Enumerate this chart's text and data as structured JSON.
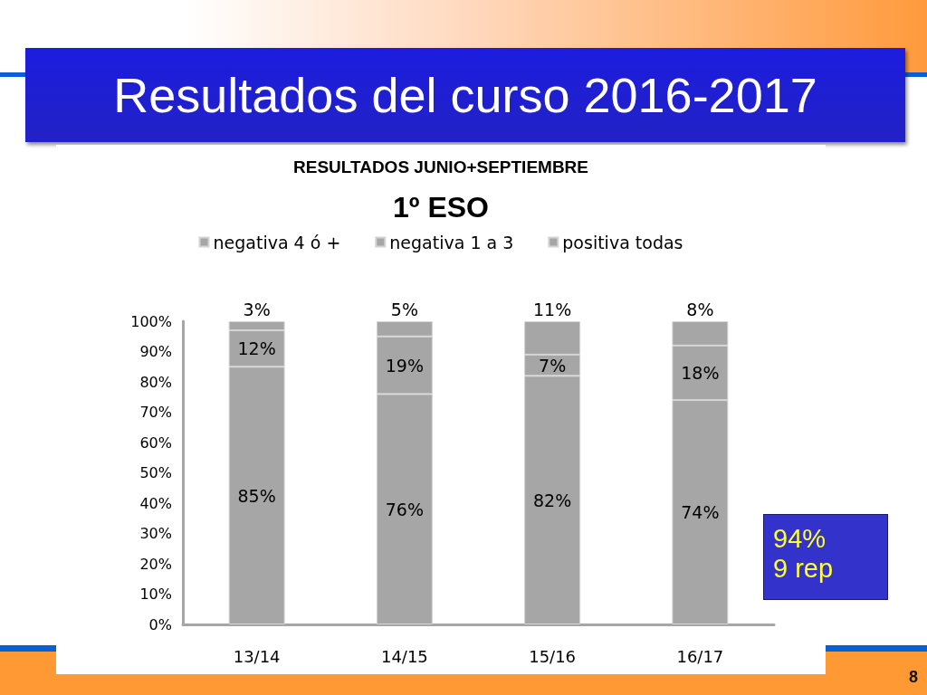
{
  "chart_data": {
    "type": "bar",
    "title": "Resultados del curso 2016-2017",
    "subtitle": "RESULTADOS JUNIO+SEPTIEMBRE",
    "annotations": [
      "1º ESO",
      "94%\n9 rep",
      "8"
    ],
    "categories": [
      "13/14",
      "14/15",
      "15/16",
      "16/17"
    ],
    "series": [
      {
        "name": "positiva todas",
        "color": "#a6a6a6",
        "values": [
          85,
          76,
          82,
          74
        ],
        "value_labels": [
          "85%",
          "76%",
          "82%",
          "74%"
        ]
      },
      {
        "name": "negativa 1 a 3",
        "color": "#a6a6a6",
        "values": [
          12,
          19,
          7,
          18
        ],
        "value_labels": [
          "12%",
          "19%",
          "7%",
          "18%"
        ]
      },
      {
        "name": "negativa 4 ó +",
        "color": "#a6a6a6",
        "values": [
          3,
          5,
          11,
          8
        ],
        "value_labels": [
          "3%",
          "5%",
          "11%",
          "8%"
        ]
      }
    ],
    "stacked": true,
    "ylim": [
      0,
      100
    ],
    "yticks": [
      {
        "value": 0,
        "label": "0%"
      },
      {
        "value": 10,
        "label": "10%"
      },
      {
        "value": 20,
        "label": "20%"
      },
      {
        "value": 30,
        "label": "30%"
      },
      {
        "value": 40,
        "label": "40%"
      },
      {
        "value": 50,
        "label": "50%"
      },
      {
        "value": 60,
        "label": "60%"
      },
      {
        "value": 70,
        "label": "70%"
      },
      {
        "value": 80,
        "label": "80%"
      },
      {
        "value": 90,
        "label": "90%"
      },
      {
        "value": 100,
        "label": "100%"
      }
    ],
    "grid": false,
    "legend": "top"
  }
}
